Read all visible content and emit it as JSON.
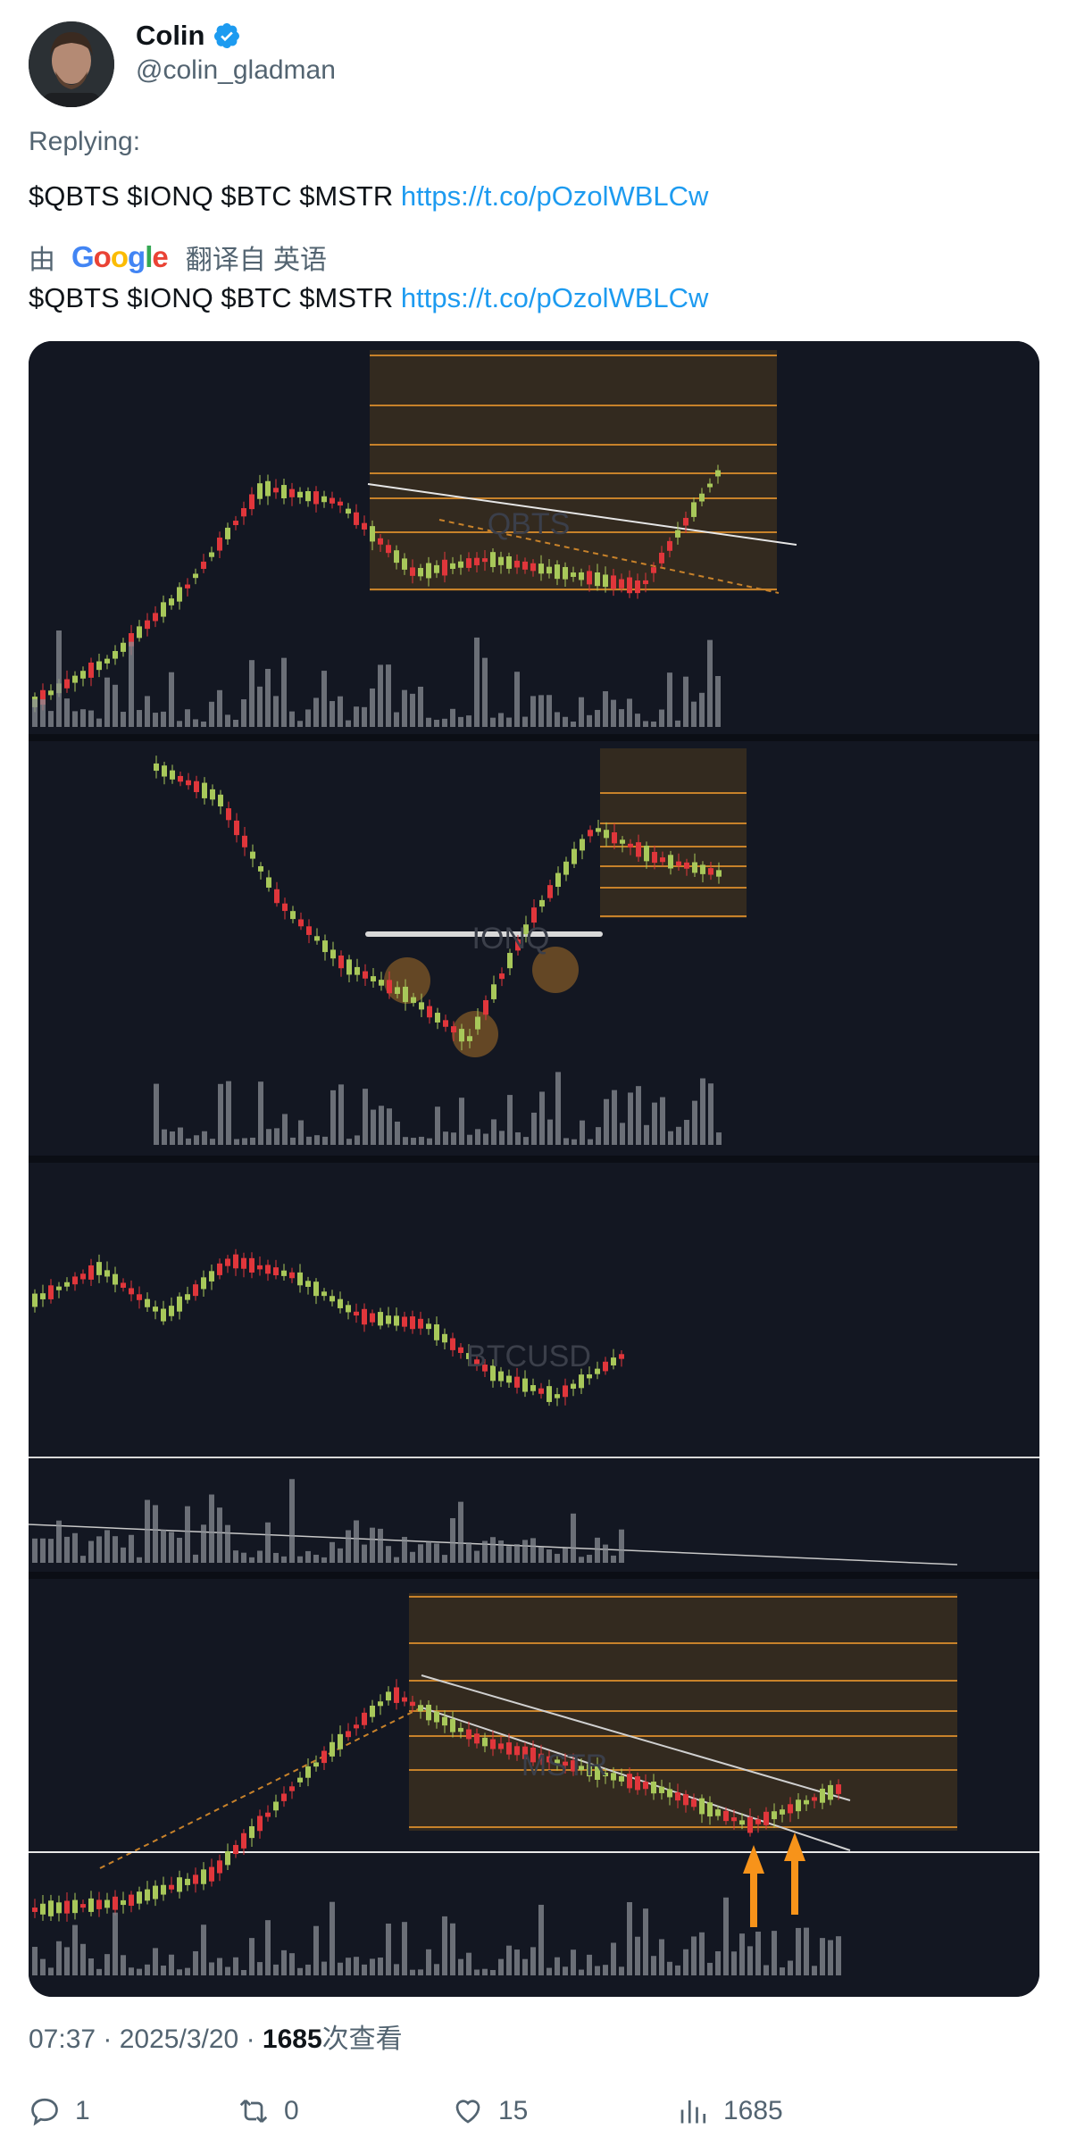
{
  "author": {
    "name": "Colin",
    "handle": "@colin_gladman",
    "verified": true,
    "verified_color": "#1d9bf0"
  },
  "tweet": {
    "replying_label": "Replying:",
    "text": "$QBTS $IONQ $BTC $MSTR",
    "link": "https://t.co/pOzolWBLCw",
    "translation_prefix": "由",
    "translation_provider": "Google",
    "translation_suffix": "翻译自 英语",
    "translated_text": "$QBTS $IONQ $BTC $MSTR",
    "translated_link": "https://t.co/pOzolWBLCw"
  },
  "media": {
    "panels": [
      {
        "watermark": "QBTS"
      },
      {
        "watermark": "IONQ"
      },
      {
        "watermark": "BTCUSD"
      },
      {
        "watermark": "MSTR"
      }
    ],
    "colors": {
      "background": "#131722",
      "up": "#a8c85a",
      "down": "#e0363b",
      "fib_zone": "#3a2e1e",
      "fib_line": "#c8822a",
      "volume": "#8a8d94",
      "arrow": "#f7931a"
    }
  },
  "meta": {
    "time": "07:37",
    "date": "2025/3/20",
    "views": "1685",
    "views_label": "次查看"
  },
  "actions": {
    "replies": "1",
    "retweets": "0",
    "likes": "15",
    "views": "1685"
  }
}
